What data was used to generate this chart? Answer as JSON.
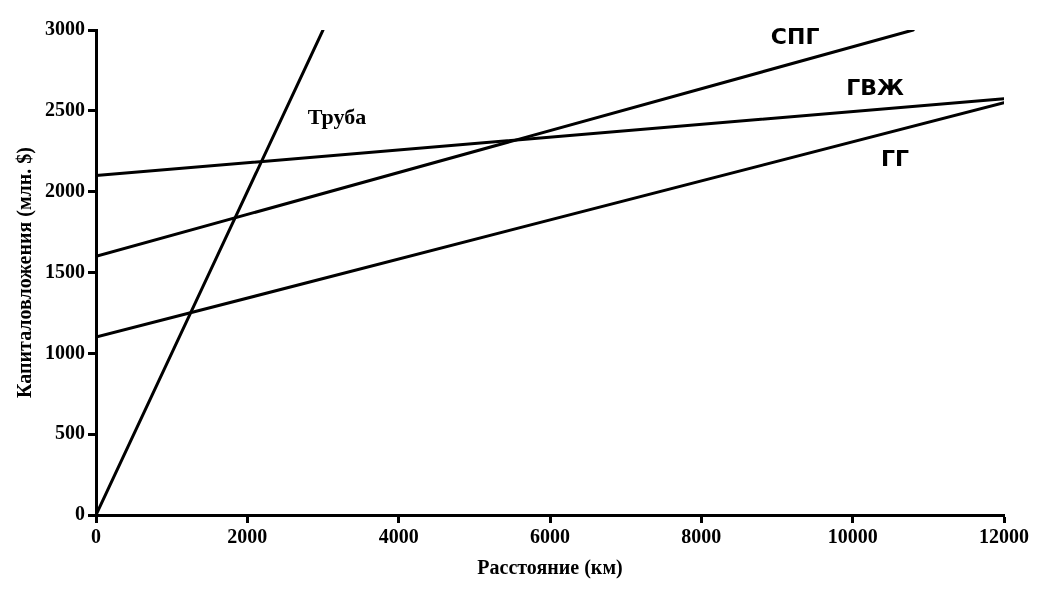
{
  "chart_data": {
    "type": "line",
    "xlabel": "Расстояние (км)",
    "ylabel": "Капиталовложения (млн. $)",
    "xlim": [
      0,
      12000
    ],
    "xticks": [
      0,
      2000,
      4000,
      6000,
      8000,
      10000,
      12000
    ],
    "ylim": [
      0,
      3000
    ],
    "yticks": [
      0,
      500,
      1000,
      1500,
      2000,
      2500,
      3000
    ],
    "grid": false,
    "legend": false,
    "marker": "none",
    "line_style": "solid",
    "series": [
      {
        "name": "Труба",
        "color": "#000000",
        "x": [
          0,
          3000
        ],
        "values": [
          0,
          3000
        ]
      },
      {
        "name": "СПГ",
        "color": "#000000",
        "x": [
          0,
          10800
        ],
        "values": [
          1600,
          3000
        ]
      },
      {
        "name": "ГВЖ",
        "color": "#000000",
        "x": [
          0,
          12000
        ],
        "values": [
          2100,
          2575
        ]
      },
      {
        "name": "ГГ",
        "color": "#000000",
        "x": [
          0,
          12000
        ],
        "values": [
          1100,
          2550
        ]
      }
    ]
  }
}
